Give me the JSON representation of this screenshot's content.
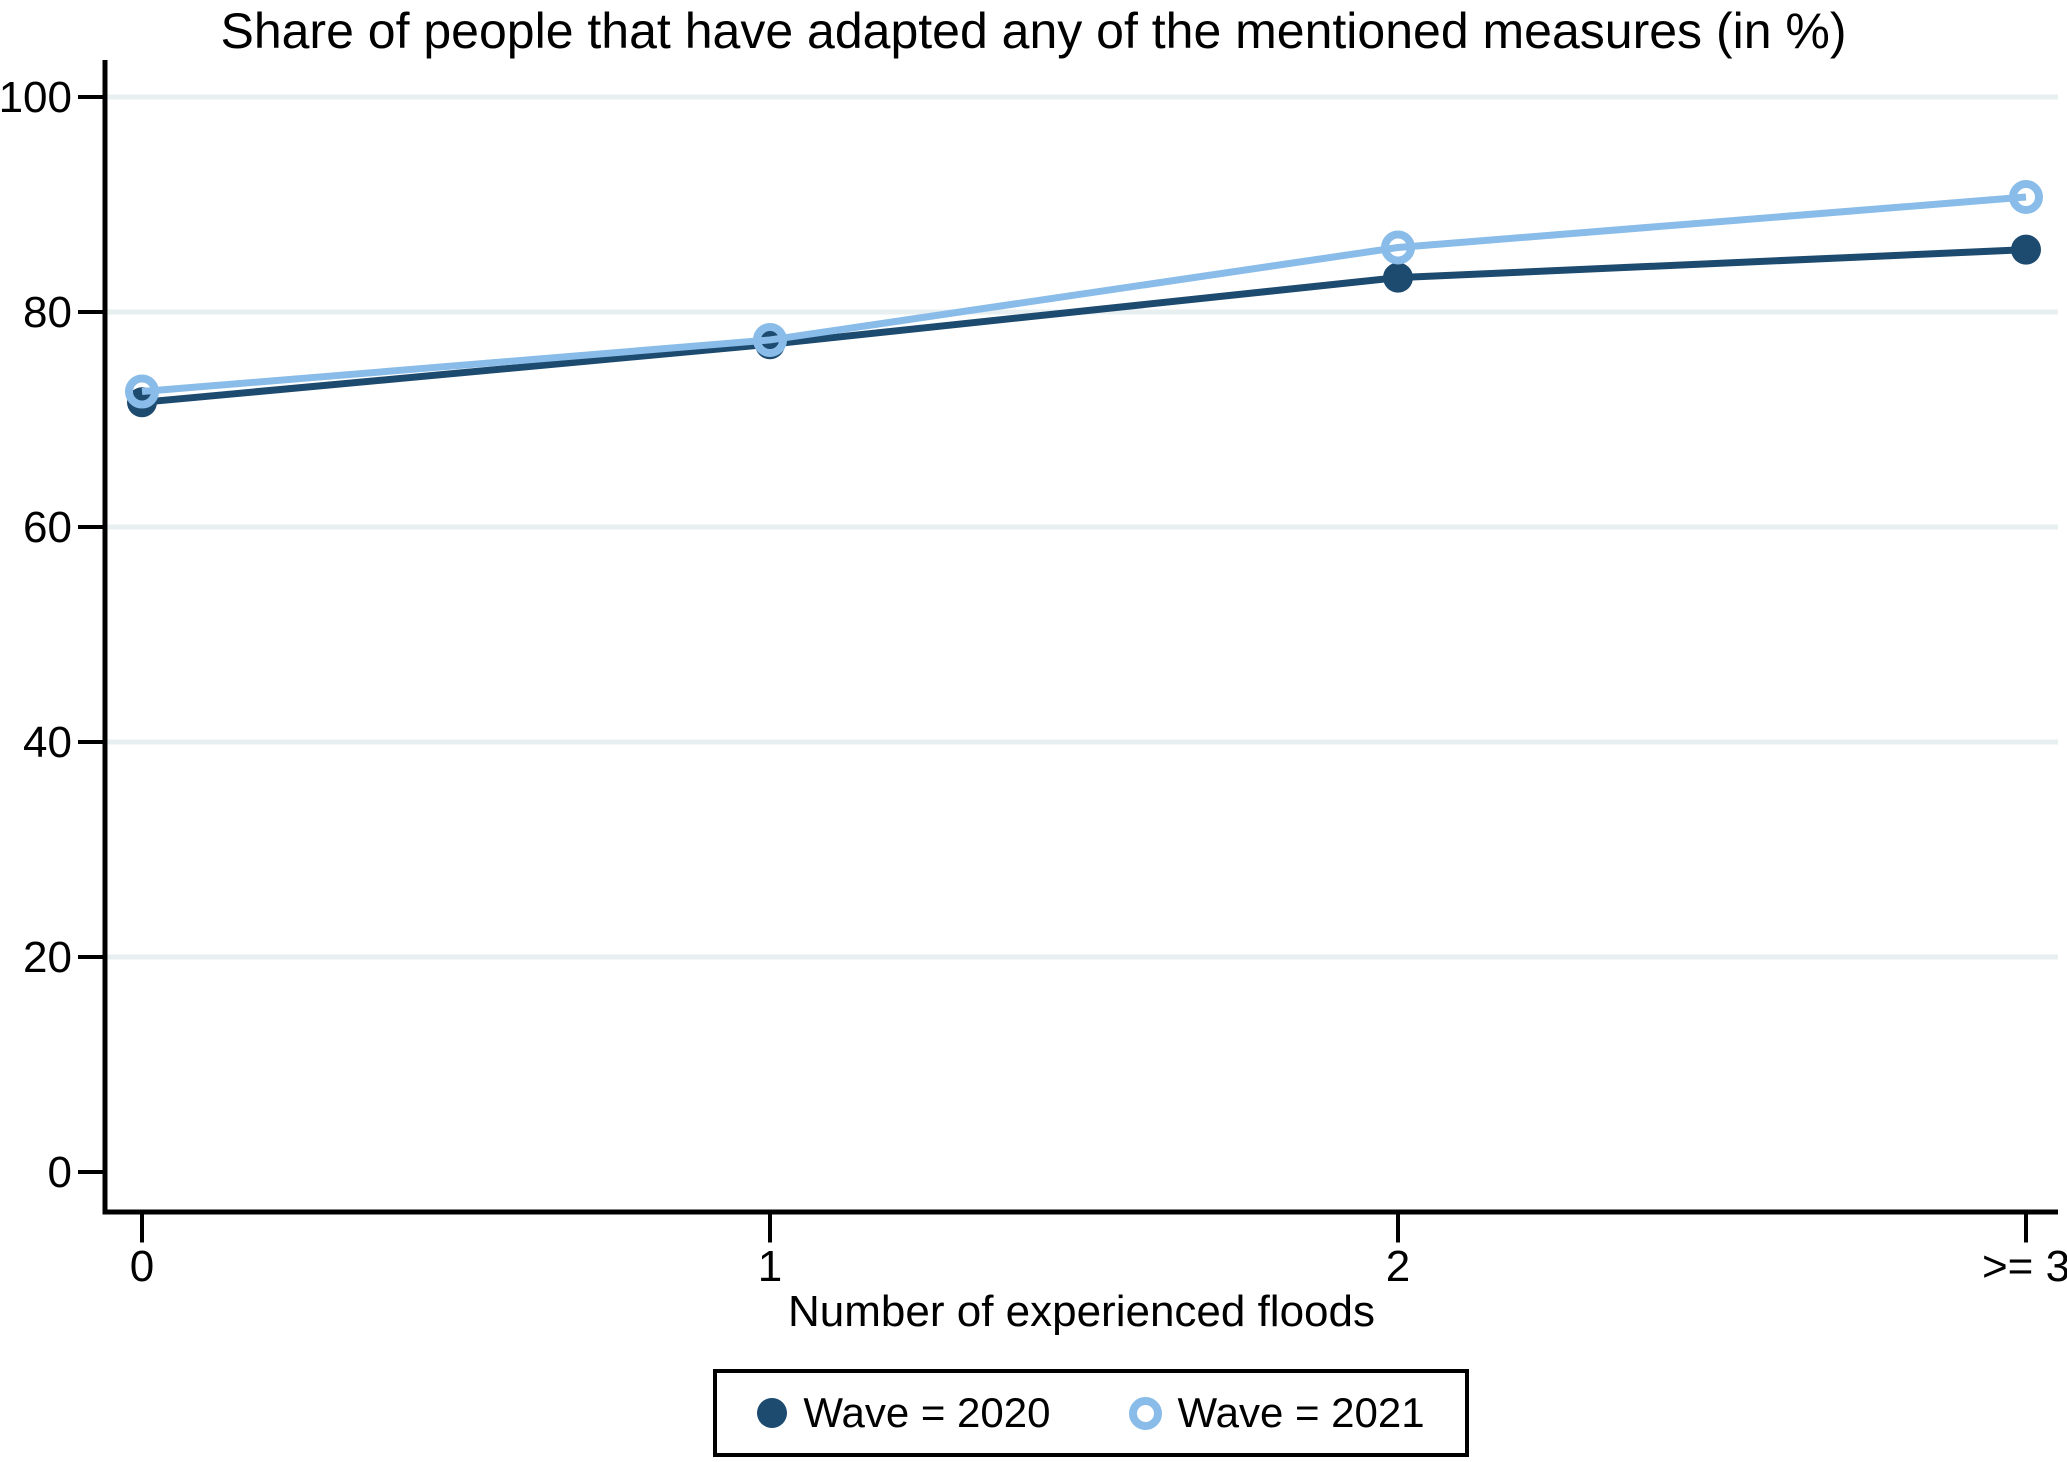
{
  "title": "Share of people that have adapted any of the mentioned measures (in %)",
  "chart_data": {
    "type": "line",
    "categories": [
      "0",
      "1",
      "2",
      ">= 3"
    ],
    "series": [
      {
        "name": "Wave = 2020",
        "values": [
          71.6,
          77.0,
          83.2,
          85.8
        ],
        "color": "#1d4a6f",
        "marker": "filled-circle"
      },
      {
        "name": "Wave = 2021",
        "values": [
          72.6,
          77.4,
          86.0,
          90.7
        ],
        "color": "#89bce8",
        "marker": "open-circle"
      }
    ],
    "xlabel": "Number of experienced floods",
    "ylabel": "",
    "ylim": [
      0,
      100
    ],
    "yticks": [
      0,
      20,
      40,
      60,
      80,
      100
    ],
    "grid": "horizontal",
    "gridline_color": "#e8eff1",
    "axis_color": "#000000",
    "legend_position": "bottom"
  }
}
